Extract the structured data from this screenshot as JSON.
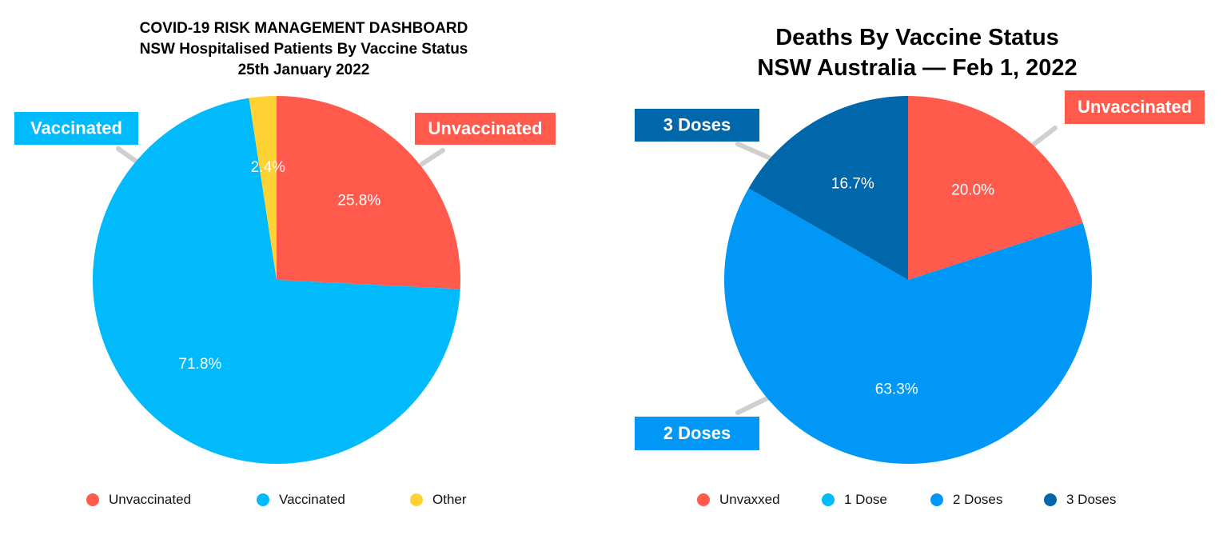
{
  "chart_data": [
    {
      "type": "pie",
      "title": "COVID-19 RISK MANAGEMENT DASHBOARD",
      "subtitle": "NSW Hospitalised Patients By Vaccine Status",
      "date": "25th January 2022",
      "slices": [
        {
          "label": "Unvaccinated",
          "value": 25.8,
          "value_label": "25.8%",
          "color": "#ff5a4b",
          "callout": "Unvaccinated"
        },
        {
          "label": "Vaccinated",
          "value": 71.8,
          "value_label": "71.8%",
          "color": "#00bafc",
          "callout": "Vaccinated"
        },
        {
          "label": "Other",
          "value": 2.4,
          "value_label": "2.4%",
          "color": "#fed232",
          "callout": ""
        }
      ],
      "legend": [
        "Unvaccinated",
        "Vaccinated",
        "Other"
      ],
      "legend_position": "bottom"
    },
    {
      "type": "pie",
      "title": "Deaths By Vaccine Status",
      "subtitle": "NSW Australia — Feb 1, 2022",
      "slices": [
        {
          "label": "Unvaxxed",
          "value": 20.0,
          "value_label": "20.0%",
          "color": "#ff5a4b",
          "callout": "Unvaccinated"
        },
        {
          "label": "1 Dose",
          "value": 0,
          "value_label": "",
          "color": "#00bafc",
          "callout": ""
        },
        {
          "label": "2 Doses",
          "value": 63.3,
          "value_label": "63.3%",
          "color": "#0197f6",
          "callout": "2 Doses"
        },
        {
          "label": "3 Doses",
          "value": 16.7,
          "value_label": "16.7%",
          "color": "#0167ab",
          "callout": "3 Doses"
        }
      ],
      "legend": [
        "Unvaxxed",
        "1 Dose",
        "2 Doses",
        "3 Doses"
      ],
      "legend_position": "bottom"
    }
  ]
}
